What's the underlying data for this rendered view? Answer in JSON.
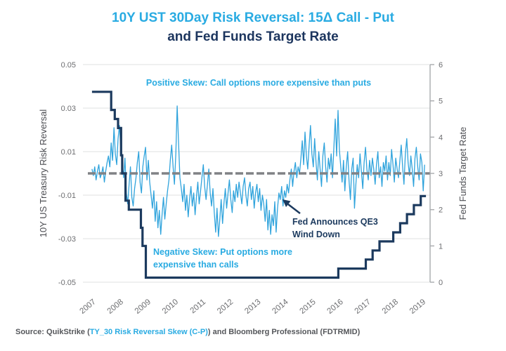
{
  "title": {
    "line1": "10Y UST 30Day Risk Reversal: 15Δ Call - Put",
    "line2": "and Fed Funds Target Rate"
  },
  "colors": {
    "accent_blue": "#29ABE2",
    "series_blue": "#2FA3DC",
    "navy": "#1C3A5E",
    "gridline": "#E5E6E8",
    "axis_line": "#A8AAAD",
    "tick_text": "#6D6E71",
    "axis_title_text": "#4D4E53",
    "zero_dash": "#808285"
  },
  "annotations": {
    "positive_skew": "Positive Skew: Call options more expensive than puts",
    "negative_skew_line1": "Negative Skew: Put options more",
    "negative_skew_line2": "expensive than calls",
    "qe3_line1": "Fed Announces QE3",
    "qe3_line2": "Wind Down"
  },
  "source": {
    "prefix": "Source: QuikStrike (",
    "link": "TY_30 Risk Reversal Skew (C-P)",
    "suffix": ") and Bloomberg Professional (FDTRMID)"
  },
  "chart_data": {
    "type": "line",
    "title": "10Y UST 30Day Risk Reversal: 15Δ Call - Put and Fed Funds Target Rate",
    "left_axis": {
      "label": "10Y US Treasury Risk Reversal",
      "min": -0.05,
      "max": 0.05,
      "ticks": [
        0.05,
        0.03,
        0.01,
        -0.01,
        -0.03,
        -0.05
      ],
      "tick_labels": [
        "0.05",
        "0.03",
        "0.01",
        "-0.01",
        "-0.03",
        "-0.05"
      ]
    },
    "right_axis": {
      "label": "Fed Funds Target Rate",
      "min": 0,
      "max": 6,
      "ticks": [
        0,
        1,
        2,
        3,
        4,
        5,
        6
      ],
      "tick_labels": [
        "0",
        "1",
        "2",
        "3",
        "4",
        "5",
        "6"
      ]
    },
    "x_axis": {
      "min": 2006.85,
      "max": 2019.3,
      "ticks": [
        2007,
        2008,
        2009,
        2010,
        2011,
        2012,
        2013,
        2014,
        2015,
        2016,
        2017,
        2018,
        2019
      ],
      "tick_labels": [
        "2007",
        "2008",
        "2009",
        "2010",
        "2011",
        "2012",
        "2013",
        "2014",
        "2015",
        "2016",
        "2017",
        "2018",
        "2019"
      ]
    },
    "grid": true,
    "zero_line": {
      "axis": "left",
      "value": 0,
      "style": "dashed"
    },
    "series": [
      {
        "name": "10Y UST 30Day Risk Reversal (15Δ Call - Put)",
        "axis": "left",
        "render": "line",
        "x0": 2007.0,
        "dx": 0.05,
        "scale": 0.001,
        "values": [
          2,
          -1,
          3,
          -3,
          1,
          4,
          -2,
          0,
          3,
          -4,
          1,
          5,
          8,
          3,
          14,
          6,
          21,
          9,
          4,
          16,
          22,
          11,
          5,
          -2,
          7,
          -9,
          -14,
          -5,
          3,
          -11,
          -15,
          -7,
          -2,
          5,
          10,
          -4,
          -9,
          3,
          8,
          12,
          -3,
          6,
          -4,
          -10,
          -16,
          -8,
          -22,
          -13,
          -25,
          -17,
          -28,
          -19,
          -11,
          -21,
          -14,
          -8,
          -3,
          6,
          13,
          3,
          -5,
          9,
          31,
          14,
          -2,
          -7,
          -13,
          -5,
          -17,
          -10,
          -20,
          -12,
          -6,
          -15,
          -9,
          -19,
          -11,
          -4,
          -14,
          -8,
          -2,
          4,
          -6,
          -12,
          -5,
          2,
          -9,
          -15,
          -7,
          -18,
          -27,
          -16,
          -29,
          -21,
          -12,
          -23,
          -14,
          -7,
          -16,
          -9,
          -3,
          -12,
          -18,
          -8,
          -13,
          -5,
          -11,
          -4,
          -9,
          -14,
          -6,
          -2,
          -10,
          -15,
          -7,
          -4,
          -12,
          -6,
          -16,
          -9,
          -5,
          -13,
          -7,
          -17,
          -10,
          -14,
          -22,
          -12,
          -26,
          -17,
          -28,
          -19,
          -24,
          -13,
          -27,
          -16,
          -9,
          -12,
          -6,
          -15,
          -8,
          -11,
          -5,
          -9,
          -3,
          2,
          -6,
          1,
          5,
          -2,
          3,
          0,
          7,
          15,
          4,
          19,
          8,
          2,
          13,
          22,
          9,
          3,
          16,
          5,
          -3,
          10,
          2,
          -6,
          8,
          14,
          3,
          -4,
          7,
          2,
          9,
          -2,
          12,
          25,
          8,
          29,
          11,
          3,
          -4,
          6,
          -8,
          3,
          10,
          -3,
          -12,
          2,
          7,
          -16,
          -5,
          4,
          -2,
          9,
          1,
          -7,
          5,
          12,
          2,
          -3,
          6,
          -1,
          7,
          2,
          -5,
          4,
          10,
          -2,
          3,
          -6,
          5,
          1,
          8,
          -3,
          5,
          -1,
          11,
          4,
          -4,
          7,
          2,
          -2,
          6,
          13,
          3,
          -5,
          9,
          16,
          5,
          -1,
          8,
          2,
          -6,
          7,
          12,
          3,
          -3,
          9,
          5,
          -8,
          4
        ]
      },
      {
        "name": "Fed Funds Target Rate (FDTRMID)",
        "axis": "right",
        "render": "step",
        "points": [
          [
            2007.0,
            5.25
          ],
          [
            2007.7,
            4.75
          ],
          [
            2007.83,
            4.5
          ],
          [
            2007.95,
            4.25
          ],
          [
            2008.06,
            3.5
          ],
          [
            2008.1,
            3.0
          ],
          [
            2008.22,
            2.25
          ],
          [
            2008.34,
            2.0
          ],
          [
            2008.78,
            1.5
          ],
          [
            2008.84,
            1.0
          ],
          [
            2008.96,
            0.125
          ],
          [
            2015.96,
            0.375
          ],
          [
            2016.96,
            0.625
          ],
          [
            2017.21,
            0.875
          ],
          [
            2017.46,
            1.125
          ],
          [
            2017.96,
            1.375
          ],
          [
            2018.21,
            1.625
          ],
          [
            2018.46,
            1.875
          ],
          [
            2018.71,
            2.125
          ],
          [
            2018.96,
            2.375
          ],
          [
            2019.15,
            2.375
          ]
        ]
      }
    ]
  }
}
